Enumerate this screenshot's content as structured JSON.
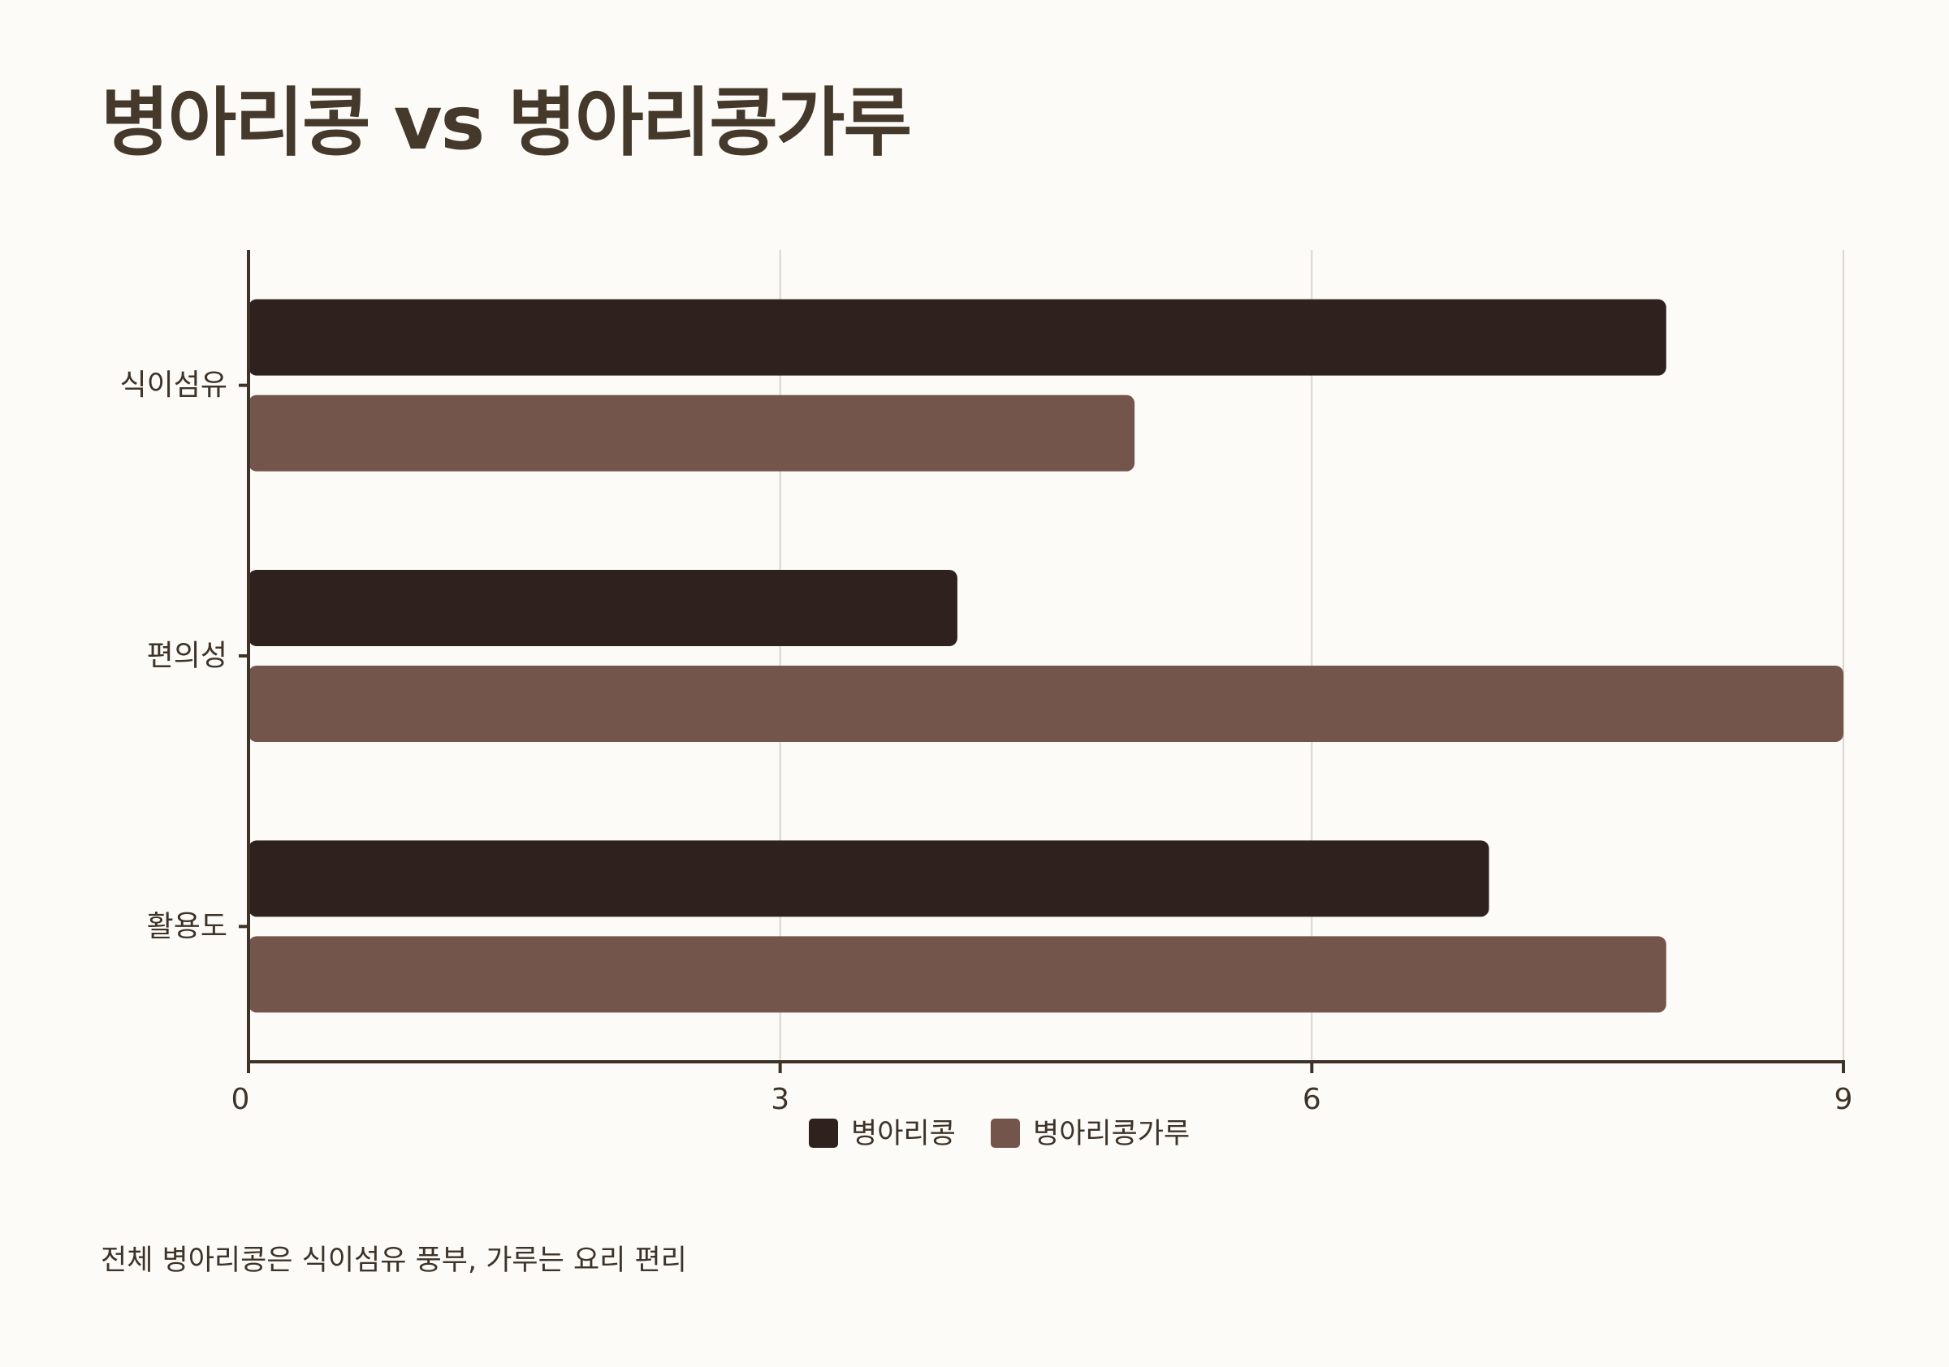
{
  "title": "병아리콩 vs 병아리콩가루",
  "footnote": "전체 병아리콩은 식이섬유 풍부, 가루는 요리 편리",
  "chart_data": {
    "type": "bar",
    "orientation": "horizontal",
    "categories": [
      "식이섬유",
      "편의성",
      "활용도"
    ],
    "series": [
      {
        "name": "병아리콩",
        "values": [
          8,
          4,
          7
        ],
        "color": "#2f221e"
      },
      {
        "name": "병아리콩가루",
        "values": [
          5,
          9,
          8
        ],
        "color": "#74554b"
      }
    ],
    "xlim": [
      0,
      9
    ],
    "xticks": [
      0,
      3,
      6,
      9
    ],
    "grid": true,
    "legend_position": "bottom-center"
  }
}
